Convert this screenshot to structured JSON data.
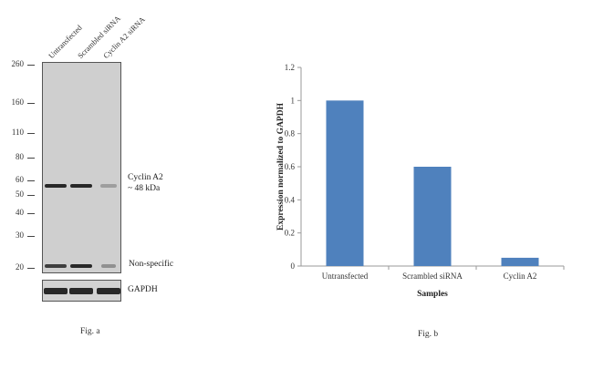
{
  "panel_a": {
    "lanes": [
      "Untransfected",
      "Scrambled siRNA",
      "Cyclin A2 siRNA"
    ],
    "mw_markers": [
      "260",
      "160",
      "110",
      "80",
      "60",
      "50",
      "40",
      "30",
      "20"
    ],
    "mw_values": [
      260,
      160,
      110,
      80,
      60,
      50,
      40,
      30,
      20
    ],
    "cyclin_label": "Cyclin A2",
    "cyclin_kda": "~ 48 kDa",
    "nonspecific_label": "Non-specific",
    "gapdh_label": "GAPDH",
    "band_intensity": {
      "cyclin_a2": [
        1.0,
        1.0,
        0.35
      ],
      "non_specific": [
        0.9,
        1.0,
        0.45
      ],
      "gapdh": [
        1.0,
        1.0,
        1.0
      ]
    },
    "caption": "Fig. a"
  },
  "chart_data": {
    "type": "bar",
    "categories": [
      "Untransfected",
      "Scrambled siRNA",
      "Cyclin A2"
    ],
    "values": [
      1.0,
      0.6,
      0.05
    ],
    "title": "",
    "xlabel": "Samples",
    "ylabel": "Expression normalized to GAPDH",
    "ylim": [
      0,
      1.2
    ],
    "yticks": [
      "0",
      "0.2",
      "0.4",
      "0.6",
      "0.8",
      "1",
      "1.2"
    ],
    "ytick_values": [
      0,
      0.2,
      0.4,
      0.6,
      0.8,
      1.0,
      1.2
    ],
    "grid": false,
    "legend": "none",
    "bar_color": "#4f81bd",
    "caption": "Fig. b"
  }
}
